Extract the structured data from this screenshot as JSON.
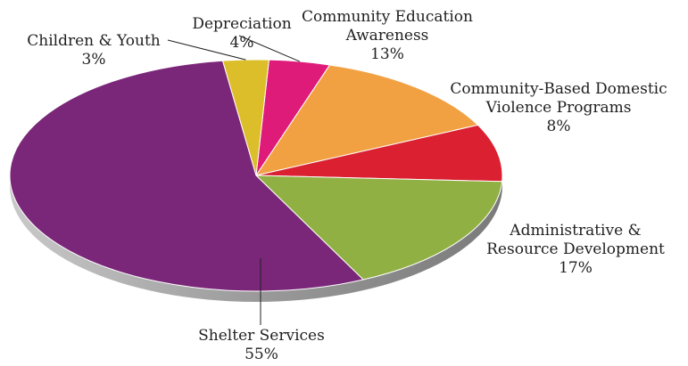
{
  "chart_data": {
    "type": "pie",
    "slices": [
      {
        "name": "Depreciation",
        "value": 4,
        "display": "4%",
        "color": "#df1b7a",
        "label_lines": [
          "Depreciation"
        ]
      },
      {
        "name": "Community Education Awareness",
        "value": 13,
        "display": "13%",
        "color": "#f2a142",
        "label_lines": [
          "Community Education",
          "Awareness"
        ]
      },
      {
        "name": "Community-Based Domestic Violence Programs",
        "value": 8,
        "display": "8%",
        "color": "#da2031",
        "label_lines": [
          "Community-Based Domestic",
          "Violence Programs"
        ]
      },
      {
        "name": "Administrative & Resource Development",
        "value": 17,
        "display": "17%",
        "color": "#91b044",
        "label_lines": [
          "Administrative &",
          "Resource Development"
        ]
      },
      {
        "name": "Shelter Services",
        "value": 55,
        "display": "55%",
        "color": "#7a2779",
        "label_lines": [
          "Shelter Services"
        ]
      },
      {
        "name": "Children & Youth",
        "value": 3,
        "display": "3%",
        "color": "#dcbe2a",
        "label_lines": [
          "Children & Youth"
        ]
      }
    ],
    "legend": "none",
    "style": "3d-tilted-pie"
  }
}
